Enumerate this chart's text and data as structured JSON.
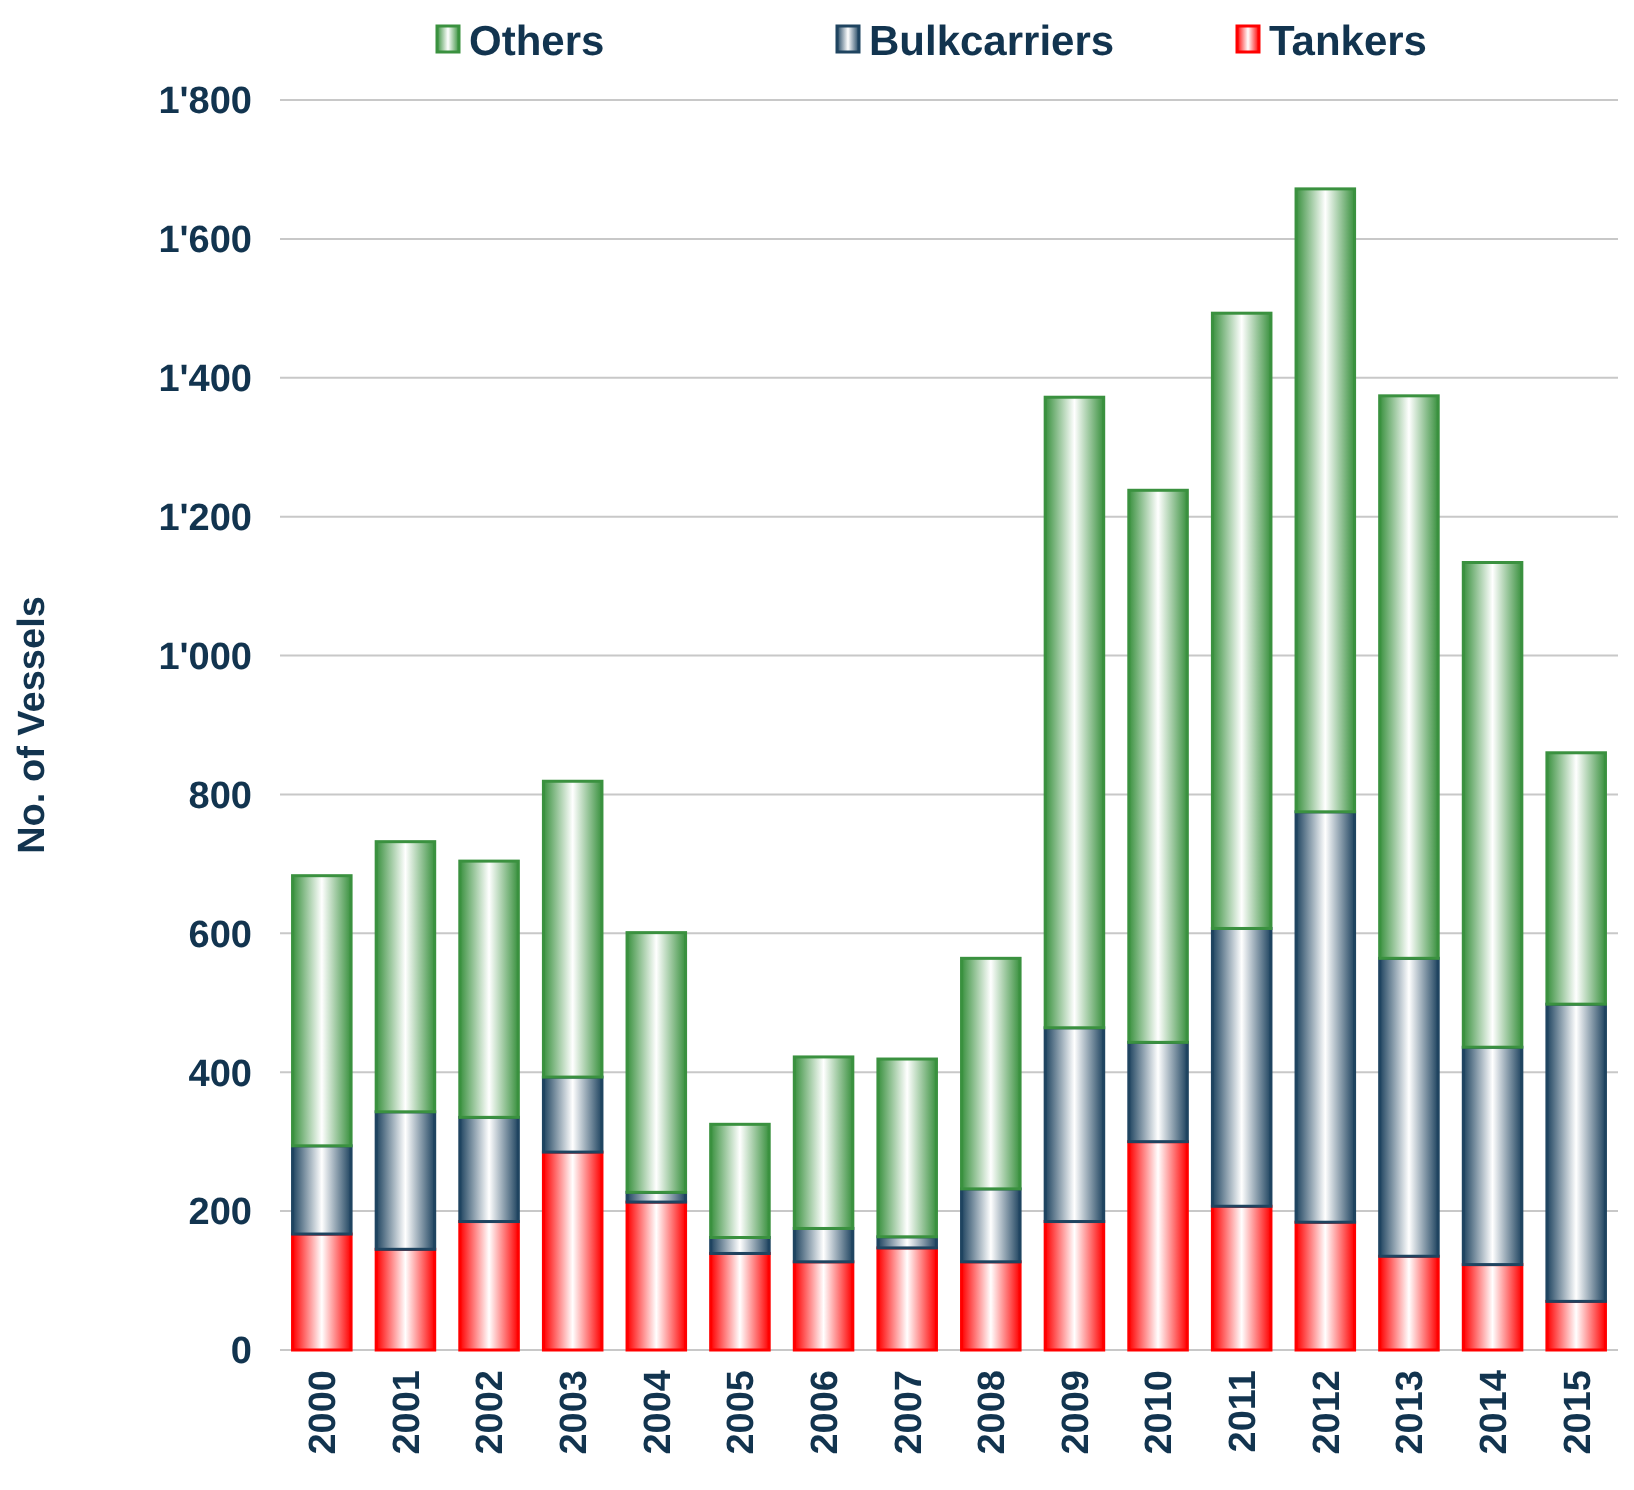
{
  "chart_data": {
    "type": "bar",
    "stacked": true,
    "ylabel": "No. of Vessels",
    "categories": [
      "2000",
      "2001",
      "2002",
      "2003",
      "2004",
      "2005",
      "2006",
      "2007",
      "2008",
      "2009",
      "2010",
      "2011",
      "2012",
      "2013",
      "2014",
      "2015"
    ],
    "series": [
      {
        "name": "Tankers",
        "color": "#ff0000",
        "values": [
          167,
          145,
          185,
          285,
          213,
          139,
          127,
          147,
          127,
          185,
          300,
          207,
          184,
          135,
          123,
          70
        ]
      },
      {
        "name": "Bulkcarriers",
        "color": "#1f4460",
        "values": [
          127,
          198,
          150,
          108,
          14,
          23,
          48,
          16,
          105,
          279,
          143,
          400,
          591,
          429,
          313,
          428
        ]
      },
      {
        "name": "Others",
        "color": "#3a913f",
        "values": [
          389,
          389,
          369,
          426,
          374,
          163,
          247,
          256,
          332,
          908,
          795,
          886,
          897,
          810,
          698,
          362
        ]
      }
    ],
    "ylim": [
      0,
      1800
    ],
    "yticks": [
      0,
      200,
      400,
      600,
      800,
      {
        "value": 1000,
        "label": "1'000"
      },
      {
        "value": 1200,
        "label": "1'200"
      },
      {
        "value": 1400,
        "label": "1'400"
      },
      {
        "value": 1600,
        "label": "1'600"
      },
      {
        "value": 1800,
        "label": "1'800"
      }
    ],
    "grid": "y",
    "legend": "top"
  }
}
